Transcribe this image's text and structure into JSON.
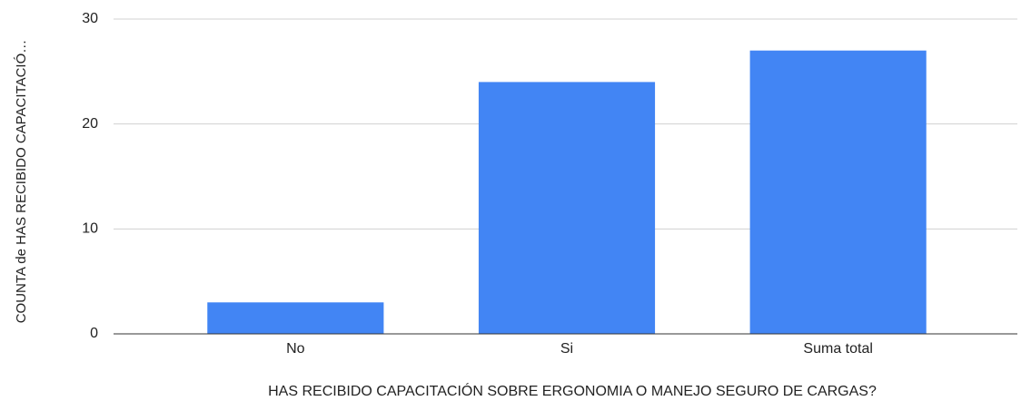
{
  "chart_data": {
    "type": "bar",
    "x_label": "HAS RECIBIDO CAPACITACIÓN SOBRE ERGONOMIA O MANEJO SEGURO DE CARGAS?",
    "y_label": "COUNTA de HAS RECIBIDO CAPACITACIÓ…",
    "categories": [
      "No",
      "Si",
      "Suma total"
    ],
    "values": [
      3,
      24,
      27
    ],
    "color": "#4285f4",
    "ylim": [
      0,
      30
    ],
    "yticks": [
      0,
      10,
      20,
      30
    ],
    "grid": true
  }
}
